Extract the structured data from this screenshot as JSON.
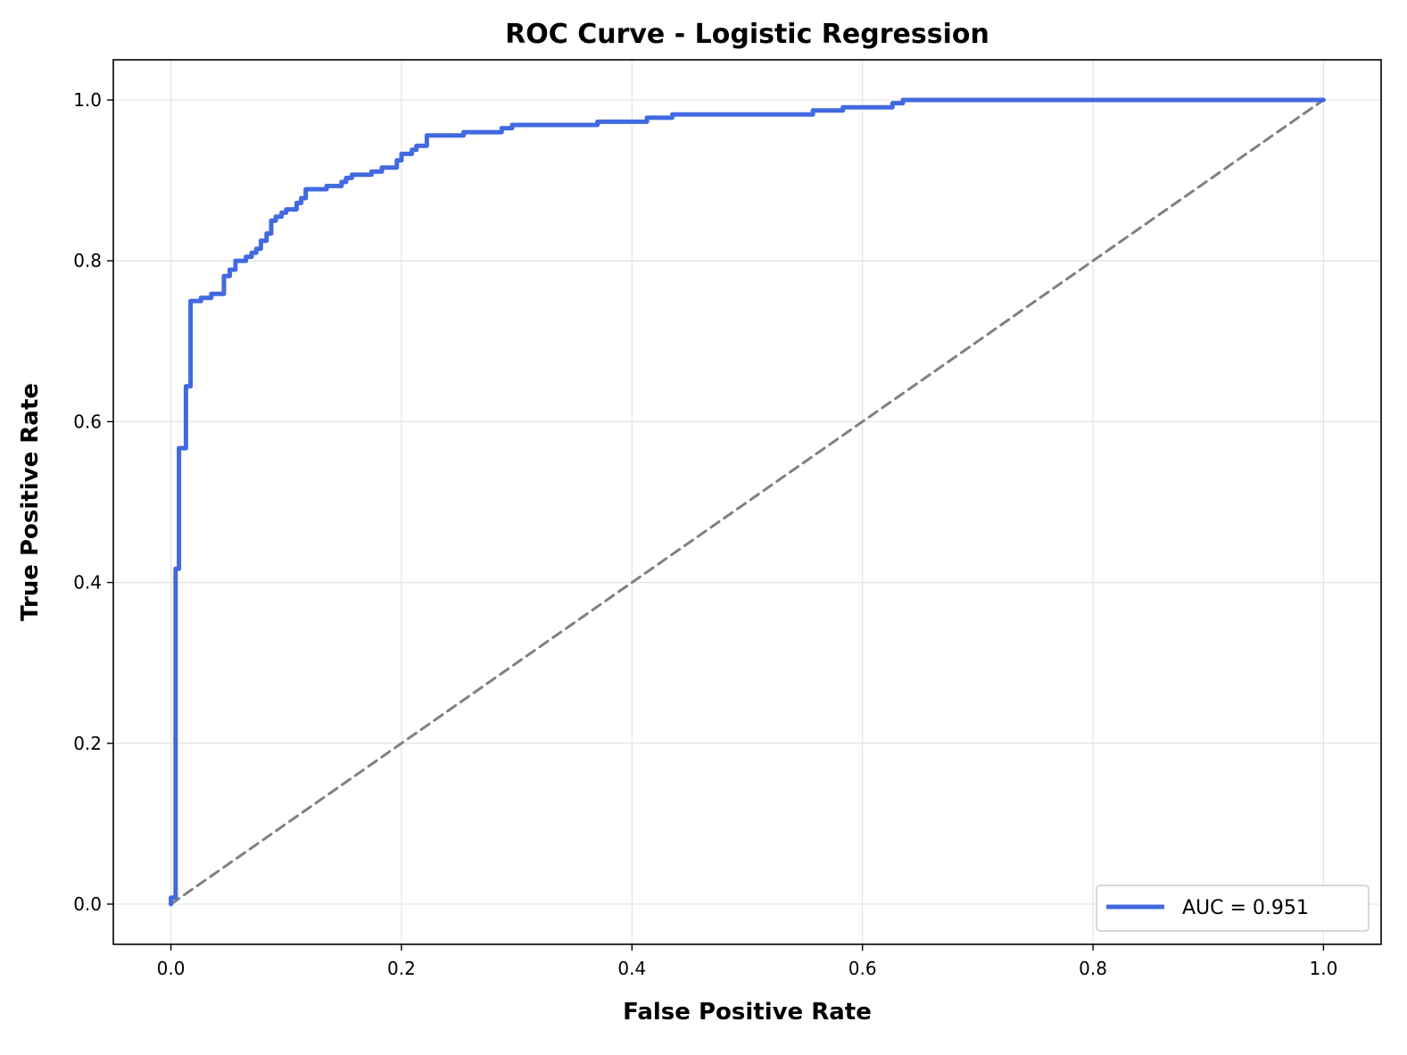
{
  "chart_data": {
    "type": "line",
    "title": "ROC Curve - Logistic Regression",
    "xlabel": "False Positive Rate",
    "ylabel": "True Positive Rate",
    "xlim": [
      -0.05,
      1.05
    ],
    "ylim": [
      -0.05,
      1.05
    ],
    "xticks": [
      "0.0",
      "0.2",
      "0.4",
      "0.6",
      "0.8",
      "1.0"
    ],
    "yticks": [
      "0.0",
      "0.2",
      "0.4",
      "0.6",
      "0.8",
      "1.0"
    ],
    "grid": true,
    "legend_position": "lower-right",
    "series": [
      {
        "name": "AUC = 0.951",
        "color": "#4169e1",
        "style": "solid",
        "x": [
          0.0,
          0.0,
          0.004,
          0.004,
          0.007,
          0.007,
          0.009,
          0.009,
          0.013,
          0.013,
          0.017,
          0.017,
          0.026,
          0.026,
          0.035,
          0.035,
          0.046,
          0.046,
          0.051,
          0.051,
          0.056,
          0.056,
          0.065,
          0.065,
          0.07,
          0.07,
          0.074,
          0.074,
          0.078,
          0.078,
          0.083,
          0.083,
          0.087,
          0.087,
          0.091,
          0.091,
          0.096,
          0.096,
          0.1,
          0.1,
          0.109,
          0.109,
          0.113,
          0.113,
          0.117,
          0.117,
          0.135,
          0.135,
          0.148,
          0.148,
          0.152,
          0.152,
          0.157,
          0.157,
          0.174,
          0.174,
          0.183,
          0.183,
          0.196,
          0.196,
          0.2,
          0.2,
          0.209,
          0.209,
          0.213,
          0.213,
          0.222,
          0.222,
          0.254,
          0.254,
          0.287,
          0.287,
          0.296,
          0.296,
          0.37,
          0.37,
          0.413,
          0.413,
          0.435,
          0.435,
          0.557,
          0.557,
          0.583,
          0.583,
          0.626,
          0.626,
          0.635,
          0.635,
          1.0
        ],
        "y": [
          0.0,
          0.008,
          0.008,
          0.417,
          0.417,
          0.567,
          0.567,
          0.567,
          0.567,
          0.644,
          0.644,
          0.75,
          0.75,
          0.754,
          0.754,
          0.759,
          0.759,
          0.781,
          0.781,
          0.789,
          0.789,
          0.8,
          0.8,
          0.805,
          0.805,
          0.81,
          0.81,
          0.815,
          0.815,
          0.825,
          0.825,
          0.834,
          0.834,
          0.85,
          0.85,
          0.855,
          0.855,
          0.86,
          0.86,
          0.864,
          0.864,
          0.872,
          0.872,
          0.878,
          0.878,
          0.889,
          0.889,
          0.893,
          0.893,
          0.898,
          0.898,
          0.903,
          0.903,
          0.907,
          0.907,
          0.911,
          0.911,
          0.916,
          0.916,
          0.925,
          0.925,
          0.933,
          0.933,
          0.938,
          0.938,
          0.943,
          0.943,
          0.956,
          0.956,
          0.96,
          0.96,
          0.965,
          0.965,
          0.969,
          0.969,
          0.973,
          0.973,
          0.978,
          0.978,
          0.982,
          0.982,
          0.987,
          0.987,
          0.991,
          0.991,
          0.996,
          0.996,
          1.0,
          1.0
        ]
      },
      {
        "color": "#808080",
        "style": "dashed",
        "x": [
          0.0,
          1.0
        ],
        "y": [
          0.0,
          1.0
        ]
      }
    ]
  }
}
